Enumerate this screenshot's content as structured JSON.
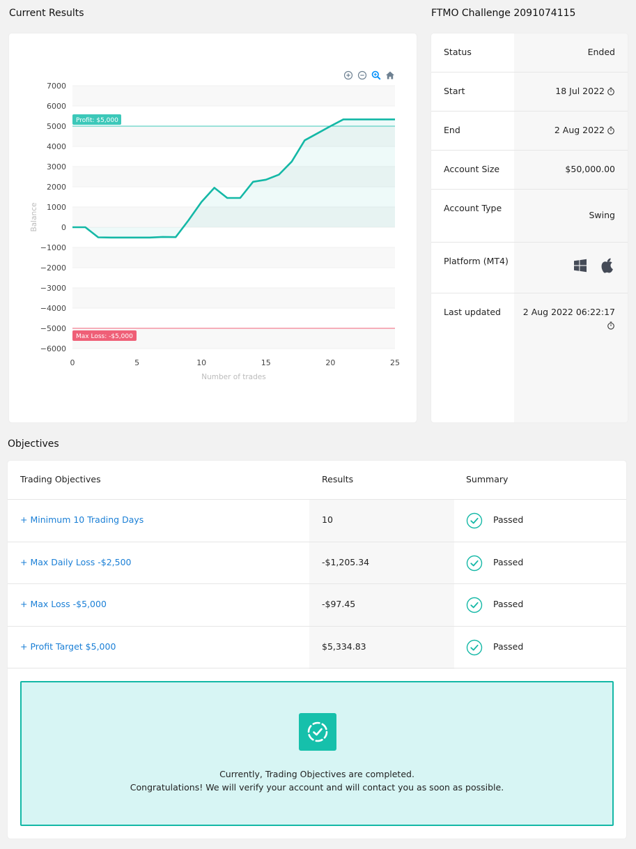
{
  "sections": {
    "current_results": "Current Results",
    "challenge_title": "FTMO Challenge 2091074115",
    "objectives": "Objectives"
  },
  "chart_data": {
    "type": "area",
    "xlabel": "Number of trades",
    "ylabel": "Balance",
    "xlim": [
      0,
      25
    ],
    "ylim": [
      -6000,
      7000
    ],
    "x_ticks": [
      "0",
      "5",
      "10",
      "15",
      "20",
      "25"
    ],
    "y_ticks": [
      "7000",
      "6000",
      "5000",
      "4000",
      "3000",
      "2000",
      "1000",
      "0",
      "−1000",
      "−2000",
      "−3000",
      "−4000",
      "−5000",
      "−6000"
    ],
    "series": [
      {
        "x": [
          0,
          1,
          2,
          3,
          4,
          5,
          6,
          7,
          8,
          9,
          10,
          11,
          12,
          13,
          14,
          15,
          16,
          17,
          18,
          19,
          20,
          21,
          22,
          23,
          24,
          25
        ],
        "y": [
          0,
          0,
          -500,
          -510,
          -510,
          -510,
          -510,
          -480,
          -490,
          350,
          1250,
          1950,
          1450,
          1450,
          2250,
          2350,
          2600,
          3250,
          4300,
          4650,
          5000,
          5335,
          5335,
          5335,
          5335,
          5335
        ]
      }
    ],
    "reference_lines": [
      {
        "label": "Profit: $5,000",
        "value": 5000,
        "color": "#3cc8b9"
      },
      {
        "label": "Max Loss: -$5,000",
        "value": -5000,
        "color": "#ef5f77"
      }
    ],
    "line_color": "#14b8a6",
    "grid": true
  },
  "toolbar": {
    "icons": [
      "zoom-in-icon",
      "zoom-out-icon",
      "zoom-icon",
      "home-icon"
    ]
  },
  "info": {
    "rows": [
      {
        "label": "Status",
        "value": "Ended"
      },
      {
        "label": "Start",
        "value": "18 Jul 2022"
      },
      {
        "label": "End",
        "value": "2 Aug 2022"
      },
      {
        "label": "Account Size",
        "value": "$50,000.00"
      },
      {
        "label": "Account Type",
        "value": "Swing"
      },
      {
        "label": "Platform (MT4)",
        "value": ""
      },
      {
        "label": "Last updated",
        "value": "2 Aug 2022 06:22:17"
      }
    ]
  },
  "objectives": {
    "headers": {
      "name": "Trading Objectives",
      "results": "Results",
      "summary": "Summary"
    },
    "rows": [
      {
        "name": "+ Minimum 10 Trading Days",
        "result": "10",
        "summary": "Passed"
      },
      {
        "name": "+ Max Daily Loss -$2,500",
        "result": "-$1,205.34",
        "summary": "Passed"
      },
      {
        "name": "+ Max Loss -$5,000",
        "result": "-$97.45",
        "summary": "Passed"
      },
      {
        "name": "+ Profit Target $5,000",
        "result": "$5,334.83",
        "summary": "Passed"
      }
    ],
    "success_line1": "Currently, Trading Objectives are completed.",
    "success_line2": "Congratulations! We will verify your account and will contact you as soon as possible."
  }
}
